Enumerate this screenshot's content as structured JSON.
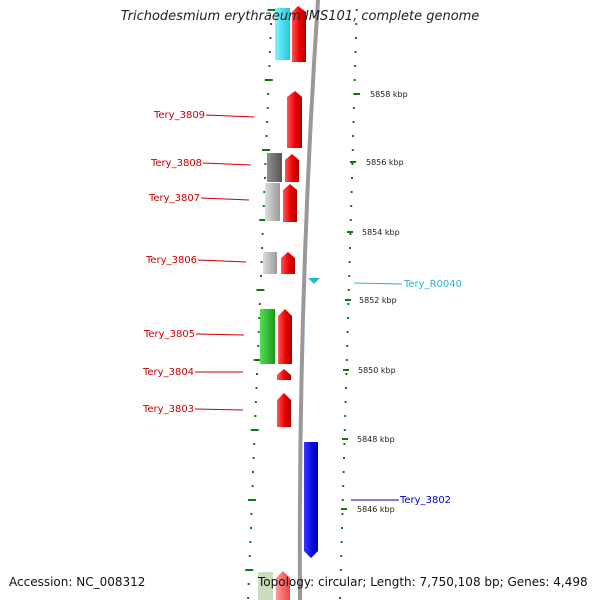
{
  "title": "Trichodesmium erythraeum IMS101, complete genome",
  "footer": {
    "accession": "Accession: NC_008312",
    "topology": "Topology: circular; Length: 7,750,108 bp; Genes: 4,498"
  },
  "scale_labels": [
    "5858 kbp",
    "5856 kbp",
    "5854 kbp",
    "5852 kbp",
    "5850 kbp",
    "5848 kbp",
    "5846 kbp"
  ],
  "genes": [
    {
      "name": "Tery_3809",
      "color": "#cc0000"
    },
    {
      "name": "Tery_3808",
      "color": "#cc0000"
    },
    {
      "name": "Tery_3807",
      "color": "#cc0000"
    },
    {
      "name": "Tery_3806",
      "color": "#cc0000"
    },
    {
      "name": "Tery_3805",
      "color": "#cc0000"
    },
    {
      "name": "Tery_3804",
      "color": "#cc0000"
    },
    {
      "name": "Tery_3803",
      "color": "#cc0000"
    },
    {
      "name": "Tery_R0040",
      "color": "#2bb5d8"
    },
    {
      "name": "Tery_3802",
      "color": "#0000bb"
    }
  ],
  "colors": {
    "forward_cds": "#ee1111",
    "reverse_cds": "#1a1aee",
    "rna": "#2bb5d8",
    "cog_gray": "#777777",
    "cog_lightgray": "#c4c4c4",
    "cog_green": "#2ebf2e",
    "cog_cyan": "#33e6f0",
    "tick_green": "#117711",
    "backbone": "#999999"
  }
}
